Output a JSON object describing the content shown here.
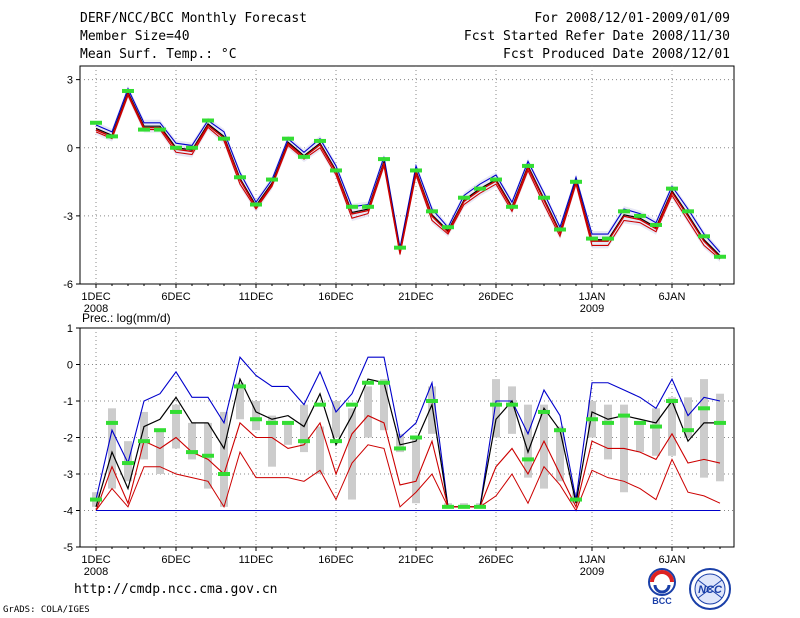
{
  "header": {
    "title": "DERF/NCC/BCC Monthly Forecast",
    "member_size": "Member Size=40",
    "variable": "Mean Surf. Temp.: °C",
    "forecast_for": "For 2008/12/01-2009/01/09",
    "fcst_started": "Fcst Started Refer Date 2008/11/30",
    "fcst_produced": "Fcst Produced Date 2008/12/01"
  },
  "footer": {
    "url": "http://cmdp.ncc.cma.gov.cn",
    "credit": "GrADS: COLA/IGES",
    "logo_bcc": "BCC",
    "logo_ncc": "NCC"
  },
  "colors": {
    "ensemble_mean": "#000000",
    "upper": "#0000cc",
    "lower": "#cc0000",
    "observed": "#33dd33",
    "spread": "#cccccc",
    "grid": "#888888"
  },
  "chart_data": [
    {
      "type": "line",
      "title": "Mean Surf. Temp.: °C",
      "ylim": [
        -6,
        3.6
      ],
      "yticks": [
        3,
        0,
        -3,
        -6
      ],
      "xticks": [
        {
          "day": 1,
          "label": "1DEC",
          "sub": "2008"
        },
        {
          "day": 6,
          "label": "6DEC"
        },
        {
          "day": 11,
          "label": "11DEC"
        },
        {
          "day": 16,
          "label": "16DEC"
        },
        {
          "day": 21,
          "label": "21DEC"
        },
        {
          "day": 26,
          "label": "26DEC"
        },
        {
          "day": 32,
          "label": "1JAN",
          "sub": "2009"
        },
        {
          "day": 37,
          "label": "6JAN"
        }
      ],
      "grid": true,
      "series": [
        {
          "name": "upper",
          "values": [
            1.0,
            0.7,
            2.6,
            1.1,
            1.1,
            0.2,
            0.1,
            1.2,
            0.7,
            -1.1,
            -2.4,
            -1.4,
            0.4,
            -0.2,
            0.4,
            -0.8,
            -2.6,
            -2.5,
            -0.4,
            -4.4,
            -0.8,
            -2.7,
            -3.5,
            -2.1,
            -1.6,
            -1.2,
            -2.4,
            -0.6,
            -2.0,
            -3.5,
            -1.3,
            -3.8,
            -3.8,
            -2.7,
            -2.9,
            -3.3,
            -1.7,
            -2.7,
            -3.8,
            -4.6
          ]
        },
        {
          "name": "ensemble_mean",
          "values": [
            0.85,
            0.55,
            2.45,
            0.95,
            0.95,
            0.0,
            -0.1,
            1.05,
            0.5,
            -1.35,
            -2.55,
            -1.55,
            0.25,
            -0.35,
            0.2,
            -1.0,
            -2.85,
            -2.7,
            -0.6,
            -4.55,
            -1.0,
            -2.95,
            -3.65,
            -2.3,
            -1.8,
            -1.4,
            -2.6,
            -0.8,
            -2.25,
            -3.7,
            -1.45,
            -4.05,
            -4.05,
            -2.95,
            -3.1,
            -3.5,
            -1.9,
            -2.95,
            -4.05,
            -4.75
          ]
        },
        {
          "name": "lower",
          "values": [
            0.7,
            0.4,
            2.3,
            0.8,
            0.8,
            -0.2,
            -0.3,
            0.9,
            0.3,
            -1.6,
            -2.7,
            -1.7,
            0.1,
            -0.5,
            0.0,
            -1.2,
            -3.1,
            -2.9,
            -0.8,
            -4.7,
            -1.2,
            -3.2,
            -3.8,
            -2.5,
            -2.0,
            -1.6,
            -2.8,
            -1.0,
            -2.5,
            -3.9,
            -1.6,
            -4.3,
            -4.3,
            -3.2,
            -3.3,
            -3.7,
            -2.1,
            -3.2,
            -4.3,
            -4.9
          ]
        },
        {
          "name": "observed",
          "values": [
            1.1,
            0.5,
            2.5,
            0.8,
            0.8,
            0.0,
            0.0,
            1.2,
            0.4,
            -1.3,
            -2.5,
            -1.4,
            0.4,
            -0.4,
            0.3,
            -1.0,
            -2.6,
            -2.6,
            -0.5,
            -4.4,
            -1.0,
            -2.8,
            -3.5,
            -2.2,
            -1.8,
            -1.4,
            -2.6,
            -0.8,
            -2.2,
            -3.6,
            -1.5,
            -4.0,
            -4.0,
            -2.8,
            -3.0,
            -3.4,
            -1.8,
            -2.8,
            -3.9,
            -4.8
          ]
        }
      ]
    },
    {
      "type": "line",
      "title": "Prec.: log(mm/d)",
      "ylim": [
        -5,
        1
      ],
      "yticks": [
        1,
        0,
        -1,
        -2,
        -3,
        -4,
        -5
      ],
      "xticks": [
        {
          "day": 1,
          "label": "1DEC",
          "sub": "2008"
        },
        {
          "day": 6,
          "label": "6DEC"
        },
        {
          "day": 11,
          "label": "11DEC"
        },
        {
          "day": 16,
          "label": "16DEC"
        },
        {
          "day": 21,
          "label": "21DEC"
        },
        {
          "day": 26,
          "label": "26DEC"
        },
        {
          "day": 32,
          "label": "1JAN",
          "sub": "2009"
        },
        {
          "day": 37,
          "label": "6JAN"
        }
      ],
      "grid": true,
      "spread": {
        "low": [
          -3.9,
          -3.4,
          -3.2,
          -2.6,
          -3.0,
          -2.3,
          -2.6,
          -3.4,
          -3.9,
          -1.5,
          -1.8,
          -2.8,
          -2.2,
          -2.4,
          -3.0,
          -2.0,
          -3.7,
          -2.0,
          -1.8,
          -2.4,
          -3.8,
          -1.9,
          -3.9,
          -3.9,
          -3.9,
          -2.0,
          -1.9,
          -3.1,
          -3.4,
          -3.2,
          -3.8,
          -2.0,
          -2.6,
          -3.5,
          -2.4,
          -2.5,
          -2.5,
          -2.0,
          -3.1,
          -3.2
        ],
        "high": [
          -3.5,
          -1.2,
          -2.1,
          -1.3,
          -1.8,
          -1.1,
          -1.6,
          -1.6,
          -1.3,
          -0.5,
          -1.0,
          -1.4,
          -1.6,
          -1.1,
          -1.7,
          -1.0,
          -1.2,
          -0.6,
          -0.4,
          -1.9,
          -2.0,
          -0.6,
          -3.8,
          -3.8,
          -3.8,
          -0.4,
          -0.6,
          -1.1,
          -1.1,
          -1.7,
          -3.5,
          -1.0,
          -1.1,
          -1.1,
          -1.6,
          -1.2,
          -0.9,
          -0.9,
          -0.4,
          -0.8
        ]
      },
      "series": [
        {
          "name": "upper",
          "values": [
            -3.7,
            -1.8,
            -2.7,
            -1.0,
            -0.8,
            -0.2,
            -0.9,
            -0.9,
            -1.6,
            0.2,
            -0.3,
            -0.6,
            -0.6,
            -1.1,
            -0.2,
            -1.3,
            -0.8,
            0.2,
            0.2,
            -2.0,
            -1.6,
            -0.5,
            -3.9,
            -3.9,
            -3.9,
            -1.0,
            -1.0,
            -1.9,
            -0.7,
            -1.4,
            -3.7,
            -0.5,
            -0.5,
            -0.7,
            -0.9,
            -1.2,
            -0.4,
            -1.4,
            -0.9,
            -1.0
          ]
        },
        {
          "name": "ensemble_mean",
          "values": [
            -3.9,
            -2.4,
            -3.4,
            -1.7,
            -1.5,
            -0.9,
            -1.6,
            -1.6,
            -2.3,
            -0.4,
            -1.3,
            -1.5,
            -1.4,
            -1.7,
            -0.8,
            -2.2,
            -1.4,
            -0.4,
            -0.5,
            -2.2,
            -2.1,
            -1.1,
            -3.9,
            -3.9,
            -3.9,
            -1.5,
            -1.0,
            -2.4,
            -1.2,
            -1.8,
            -3.8,
            -1.3,
            -1.5,
            -1.4,
            -1.5,
            -1.6,
            -1.0,
            -2.1,
            -1.6,
            -1.6
          ]
        },
        {
          "name": "lower",
          "values": [
            -4.0,
            -2.8,
            -3.8,
            -2.1,
            -2.3,
            -2.0,
            -2.4,
            -2.6,
            -3.0,
            -1.6,
            -2.0,
            -2.0,
            -2.3,
            -2.2,
            -1.6,
            -3.0,
            -1.9,
            -1.4,
            -1.6,
            -3.3,
            -3.2,
            -2.1,
            -3.9,
            -3.9,
            -3.9,
            -2.8,
            -2.3,
            -3.0,
            -2.1,
            -3.0,
            -3.9,
            -2.1,
            -2.3,
            -2.3,
            -2.4,
            -2.6,
            -1.9,
            -2.7,
            -2.6,
            -2.7
          ]
        },
        {
          "name": "lower2",
          "values": [
            -4.0,
            -3.4,
            -3.9,
            -2.8,
            -2.8,
            -3.0,
            -3.1,
            -3.2,
            -3.9,
            -2.4,
            -3.1,
            -3.1,
            -3.1,
            -3.2,
            -2.9,
            -3.7,
            -2.7,
            -2.2,
            -2.3,
            -3.9,
            -3.5,
            -3.0,
            -3.9,
            -3.9,
            -3.9,
            -3.6,
            -3.0,
            -3.8,
            -2.8,
            -3.3,
            -4.0,
            -2.9,
            -3.1,
            -3.2,
            -3.4,
            -3.7,
            -2.6,
            -3.5,
            -3.6,
            -3.8
          ]
        },
        {
          "name": "baseline",
          "values": [
            -4.0,
            -4.0,
            -4.0,
            -4.0,
            -4.0,
            -4.0,
            -4.0,
            -4.0,
            -4.0,
            -4.0,
            -4.0,
            -4.0,
            -4.0,
            -4.0,
            -4.0,
            -4.0,
            -4.0,
            -4.0,
            -4.0,
            -4.0,
            -4.0,
            -4.0,
            -4.0,
            -4.0,
            -4.0,
            -4.0,
            -4.0,
            -4.0,
            -4.0,
            -4.0,
            -4.0,
            -4.0,
            -4.0,
            -4.0,
            -4.0,
            -4.0,
            -4.0,
            -4.0,
            -4.0,
            -4.0
          ]
        },
        {
          "name": "observed",
          "values": [
            -3.7,
            -1.6,
            -2.7,
            -2.1,
            -1.8,
            -1.3,
            -2.4,
            -2.5,
            -3.0,
            -0.6,
            -1.5,
            -1.6,
            -1.6,
            -2.1,
            -1.1,
            -2.1,
            -1.1,
            -0.5,
            -0.5,
            -2.3,
            -2.0,
            -1.0,
            -3.9,
            -3.9,
            -3.9,
            -1.1,
            -1.1,
            -2.6,
            -1.3,
            -1.8,
            -3.7,
            -1.5,
            -1.6,
            -1.4,
            -1.6,
            -1.7,
            -1.0,
            -1.8,
            -1.2,
            -1.6
          ]
        }
      ]
    }
  ]
}
